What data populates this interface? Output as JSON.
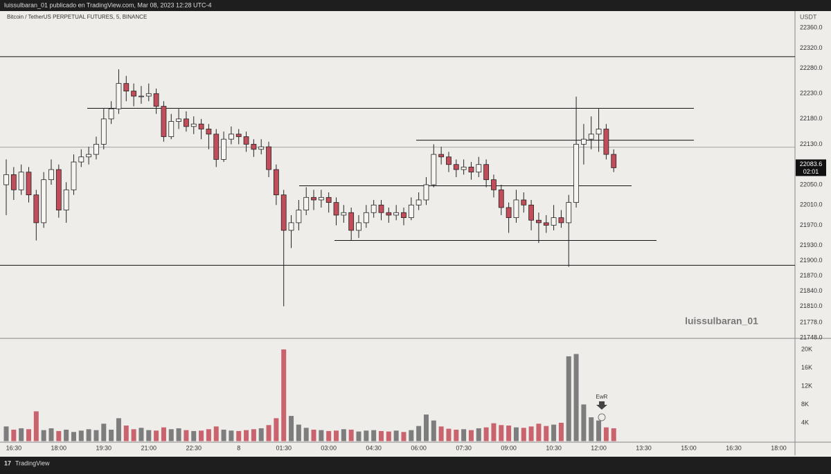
{
  "header": "luissulbaran_01 publicado en TradingView.com, Mar 08, 2023 12:28 UTC-4",
  "footer": "TradingView",
  "chart_data": {
    "type": "candlestick",
    "subtitle": "Bitcoin / TetherUS PERPETUAL FUTURES, 5, BINANCE",
    "watermark": "luissulbaran_01",
    "currency": "USDT",
    "countdown": "02:01",
    "annotation": "EwR",
    "up_color": "#f6f5f2",
    "down_color": "#c24d5a",
    "volume_up_color": "#7d7d7d",
    "volume_down_color": "#c9646f",
    "xtick_labels": [
      "16:30",
      "18:00",
      "19:30",
      "21:00",
      "22:30",
      "8",
      "01:30",
      "03:00",
      "04:30",
      "06:00",
      "07:30",
      "09:00",
      "10:30",
      "12:00",
      "13:30",
      "15:00",
      "16:30",
      "18:00"
    ],
    "open": [
      22050,
      22070,
      22040,
      22075,
      22030,
      21975,
      22060,
      22080,
      22000,
      22040,
      22095,
      22105,
      22110,
      22130,
      22180,
      22200,
      22250,
      22235,
      22225,
      22225,
      22230,
      22205,
      22145,
      22175,
      22180,
      22165,
      22170,
      22160,
      22150,
      22100,
      22140,
      22150,
      22145,
      22130,
      22120,
      22125,
      22080,
      22030,
      21960,
      21975,
      22000,
      22025,
      22020,
      22025,
      22015,
      21990,
      21995,
      21960,
      21975,
      21995,
      22010,
      21995,
      21990,
      21995,
      21985,
      22010,
      22020,
      22050,
      22110,
      22105,
      22090,
      22080,
      22085,
      22075,
      22090,
      22060,
      22040,
      22005,
      21985,
      22020,
      22010,
      21980,
      21975,
      21970,
      21985,
      21975,
      22015,
      22130,
      22140,
      22150,
      22160,
      22110
    ],
    "high": [
      22100,
      22085,
      22090,
      22085,
      22040,
      22075,
      22100,
      22090,
      22055,
      22110,
      22120,
      22125,
      22145,
      22200,
      22215,
      22278,
      22265,
      22250,
      22245,
      22250,
      22240,
      22215,
      22190,
      22200,
      22195,
      22185,
      22180,
      22170,
      22160,
      22155,
      22165,
      22160,
      22155,
      22140,
      22140,
      22135,
      22090,
      22040,
      21990,
      22020,
      22045,
      22040,
      22040,
      22035,
      22025,
      22010,
      22005,
      21990,
      22010,
      22020,
      22020,
      22005,
      22010,
      22005,
      22025,
      22035,
      22065,
      22130,
      22125,
      22115,
      22100,
      22100,
      22095,
      22105,
      22100,
      22070,
      22050,
      22015,
      22040,
      22035,
      22020,
      21995,
      21990,
      22010,
      22000,
      22030,
      22224,
      22170,
      22185,
      22200,
      22170,
      22120
    ],
    "low": [
      21990,
      22020,
      22030,
      22015,
      21940,
      21965,
      22050,
      21985,
      21975,
      22030,
      22085,
      22090,
      22100,
      22120,
      22170,
      22190,
      22215,
      22205,
      22210,
      22215,
      22190,
      22135,
      22140,
      22160,
      22155,
      22150,
      22140,
      22120,
      22085,
      22095,
      22130,
      22130,
      22115,
      22105,
      22110,
      22065,
      22010,
      21810,
      21925,
      21960,
      21990,
      22000,
      22005,
      21995,
      21970,
      21975,
      21940,
      21945,
      21965,
      21985,
      21980,
      21975,
      21980,
      21970,
      21980,
      22000,
      22010,
      22045,
      22090,
      22075,
      22065,
      22070,
      22060,
      22065,
      22045,
      22025,
      21990,
      21955,
      21975,
      21995,
      21960,
      21935,
      21955,
      21960,
      21965,
      21888,
      22005,
      22090,
      22120,
      22115,
      22100,
      22075
    ],
    "close": [
      22070,
      22040,
      22075,
      22030,
      21975,
      22060,
      22080,
      22000,
      22040,
      22095,
      22105,
      22110,
      22130,
      22180,
      22200,
      22250,
      22235,
      22225,
      22225,
      22230,
      22205,
      22145,
      22175,
      22180,
      22165,
      22170,
      22160,
      22150,
      22100,
      22140,
      22150,
      22145,
      22130,
      22120,
      22125,
      22080,
      22030,
      21960,
      21975,
      22000,
      22025,
      22020,
      22025,
      22015,
      21990,
      21995,
      21960,
      21975,
      21995,
      22010,
      21995,
      21990,
      21995,
      21985,
      22010,
      22020,
      22050,
      22110,
      22105,
      22090,
      22080,
      22085,
      22075,
      22090,
      22060,
      22040,
      22005,
      21985,
      22020,
      22010,
      21980,
      21975,
      21970,
      21985,
      21975,
      22015,
      22130,
      22140,
      22150,
      22160,
      22110,
      22083.6
    ],
    "volume": [
      3200,
      2500,
      2800,
      2600,
      6500,
      2400,
      2800,
      2200,
      2500,
      2000,
      2300,
      2600,
      2400,
      3800,
      2500,
      5000,
      3400,
      2600,
      2900,
      2400,
      2300,
      3000,
      2600,
      2800,
      2400,
      2200,
      2300,
      2600,
      3200,
      2500,
      2300,
      2200,
      2400,
      2600,
      2800,
      3500,
      5000,
      20000,
      5500,
      3600,
      2900,
      2500,
      2400,
      2200,
      2300,
      2600,
      2500,
      2100,
      2300,
      2400,
      2200,
      2100,
      2300,
      2000,
      2400,
      3300,
      5800,
      4500,
      3200,
      2700,
      2500,
      2600,
      2400,
      2800,
      3000,
      3900,
      3500,
      3400,
      3000,
      2900,
      3200,
      3800,
      3300,
      3600,
      4000,
      18500,
      19000,
      8000,
      5200,
      4500,
      3000,
      2800
    ],
    "levels": [
      22303,
      22201,
      22138,
      22124,
      22048,
      21940,
      21891
    ],
    "ylim": [
      21748,
      22393
    ],
    "yticks": [
      {
        "value": 22360,
        "label": "22360.0"
      },
      {
        "value": 22320,
        "label": "22320.0"
      },
      {
        "value": 22280,
        "label": "22280.0"
      },
      {
        "value": 22230,
        "label": "22230.0"
      },
      {
        "value": 22180,
        "label": "22180.0"
      },
      {
        "value": 22130,
        "label": "22130.0"
      },
      {
        "value": 22050,
        "label": "22050.0"
      },
      {
        "value": 22010,
        "label": "22010.0"
      },
      {
        "value": 21970,
        "label": "21970.0"
      },
      {
        "value": 21930,
        "label": "21930.0"
      },
      {
        "value": 21900,
        "label": "21900.0"
      },
      {
        "value": 21870,
        "label": "21870.0"
      },
      {
        "value": 21840,
        "label": "21840.0"
      },
      {
        "value": 21810,
        "label": "21810.0"
      },
      {
        "value": 21778,
        "label": "21778.0"
      },
      {
        "value": 21748,
        "label": "21748.0"
      }
    ],
    "vlim": [
      0,
      22260
    ],
    "vticks": [
      {
        "value": 4000,
        "label": "4K"
      },
      {
        "value": 8000,
        "label": "8K"
      },
      {
        "value": 12000,
        "label": "12K"
      },
      {
        "value": 16000,
        "label": "16K"
      },
      {
        "value": 20000,
        "label": "20K"
      }
    ]
  }
}
